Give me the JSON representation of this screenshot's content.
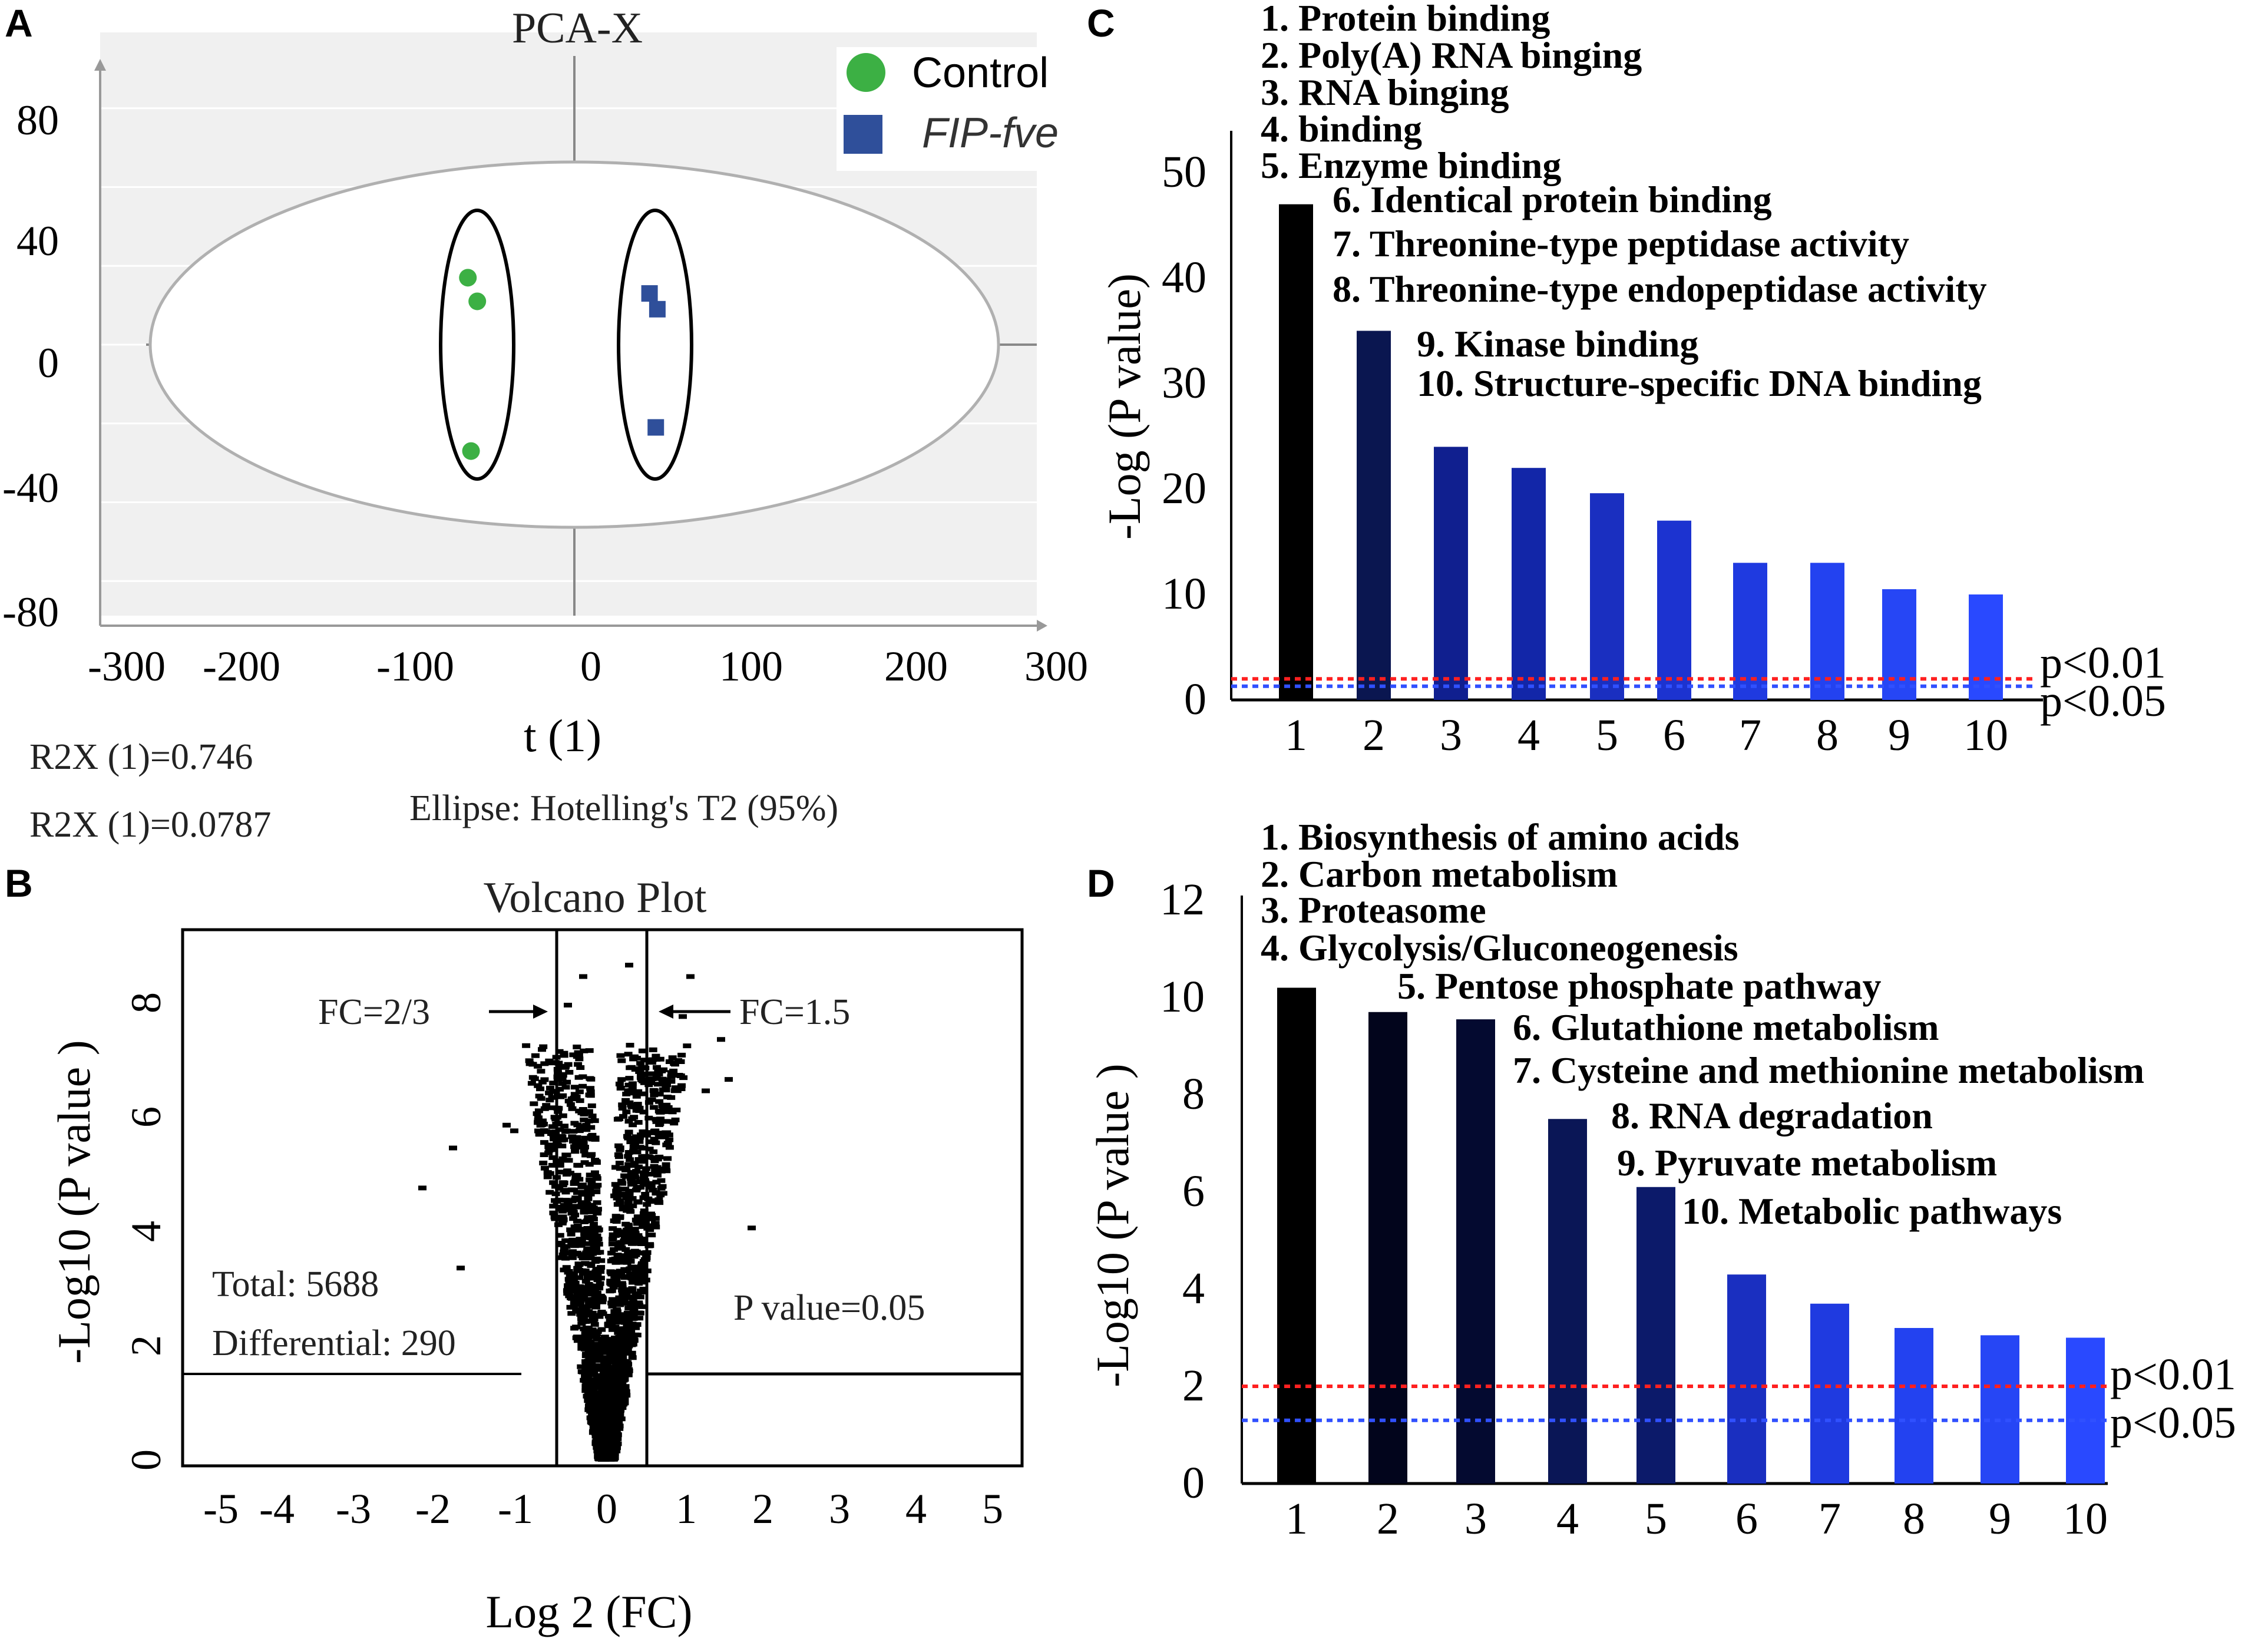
{
  "panels": {
    "a": "A",
    "b": "B",
    "c": "C",
    "d": "D"
  },
  "chart_data": [
    {
      "type": "scatter",
      "panel": "A",
      "title": "PCA-X",
      "xlabel": "t (1)",
      "xlim": [
        -300,
        300
      ],
      "ylim": [
        -80,
        80
      ],
      "xticks": [
        "-300",
        "-200",
        "-100",
        "0",
        "100",
        "200",
        "300"
      ],
      "yticks": [
        "80",
        "40",
        "0",
        "-40",
        "-80"
      ],
      "legend": [
        {
          "name": "Control",
          "color": "#3cb044",
          "marker": "circle"
        },
        {
          "name": "FIP-fve",
          "color": "#2f4f9a",
          "marker": "square"
        }
      ],
      "series": [
        {
          "name": "Control",
          "points": [
            [
              -68,
              17
            ],
            [
              -62,
              11
            ],
            [
              -66,
              -27
            ]
          ]
        },
        {
          "name": "FIP-fve",
          "points": [
            [
              48,
              13
            ],
            [
              53,
              9
            ],
            [
              52,
              -21
            ]
          ]
        }
      ],
      "notes": [
        "R2X (1)=0.746",
        "R2X (1)=0.0787",
        "Ellipse: Hotelling's T2  (95%)"
      ]
    },
    {
      "type": "scatter",
      "panel": "B",
      "title": "Volcano Plot",
      "xlabel": "Log 2  (FC)",
      "ylabel": "-Log10  (P value )",
      "xlim": [
        -5.5,
        5.5
      ],
      "ylim": [
        0,
        9
      ],
      "xticks": [
        "-5",
        "-4",
        "-3",
        "-2",
        "-1",
        "0",
        "1",
        "2",
        "3",
        "4",
        "5"
      ],
      "yticks": [
        "0",
        "2",
        "4",
        "6",
        "8"
      ],
      "annotations": {
        "fc_low": "FC=2/3",
        "fc_high": "FC=1.5",
        "total": "Total: 5688",
        "differential": "Differential: 290",
        "pvalue": "P value=0.05"
      },
      "thresholds": {
        "log2fc_low": -0.585,
        "log2fc_high": 0.585,
        "neglog10p": 1.3
      },
      "total_points": 5688
    },
    {
      "type": "bar",
      "panel": "C",
      "ylabel": "-Log  (P value)",
      "categories": [
        "1",
        "2",
        "3",
        "4",
        "5",
        "6",
        "7",
        "8",
        "9",
        "10"
      ],
      "values": [
        47,
        35,
        24,
        22,
        19.6,
        17,
        13,
        13,
        10.5,
        10
      ],
      "colors": [
        "#000000",
        "#0a1650",
        "#101f8f",
        "#1226a8",
        "#1a2fc0",
        "#1c33d0",
        "#1f3ae0",
        "#2342f0",
        "#2646f5",
        "#2949ff"
      ],
      "ylim": [
        0,
        55
      ],
      "yticks": [
        "0",
        "10",
        "20",
        "30",
        "40",
        "50"
      ],
      "thresholds": [
        {
          "label": "p<0.01",
          "value": 2.0,
          "color": "#ff2020"
        },
        {
          "label": "p<0.05",
          "value": 1.3,
          "color": "#3050ff"
        }
      ],
      "terms": [
        "1. Protein binding",
        "2. Poly(A) RNA binging",
        "3. RNA binging",
        "4. binding",
        "5. Enzyme binding",
        "6. Identical protein binding",
        "7. Threonine-type peptidase activity",
        "8. Threonine-type endopeptidase activity",
        "9. Kinase binding",
        "10. Structure-specific DNA  binding"
      ]
    },
    {
      "type": "bar",
      "panel": "D",
      "ylabel": "-Log10  (P value )",
      "categories": [
        "1",
        "2",
        "3",
        "4",
        "5",
        "6",
        "7",
        "8",
        "9",
        "10"
      ],
      "values": [
        10.2,
        9.7,
        9.55,
        7.5,
        6.1,
        4.3,
        3.7,
        3.2,
        3.05,
        3.0
      ],
      "colors": [
        "#000000",
        "#02051c",
        "#040a30",
        "#0a1656",
        "#0c1a6a",
        "#1a2fc0",
        "#1f3ae0",
        "#2342f0",
        "#2646f5",
        "#2949ff"
      ],
      "ylim": [
        0,
        12
      ],
      "yticks": [
        "0",
        "2",
        "4",
        "6",
        "8",
        "10",
        "12"
      ],
      "thresholds": [
        {
          "label": "p<0.01",
          "value": 2.0,
          "color": "#ff2020"
        },
        {
          "label": "p<0.05",
          "value": 1.3,
          "color": "#3050ff"
        }
      ],
      "terms": [
        "1. Biosynthesis of amino acids",
        "2. Carbon metabolism",
        "3. Proteasome",
        "4. Glycolysis/Gluconeogenesis",
        "5. Pentose phosphate pathway",
        "6. Glutathione metabolism",
        "7. Cysteine and methionine metabolism",
        "8. RNA degradation",
        "9. Pyruvate metabolism",
        "10. Metabolic pathways"
      ]
    }
  ]
}
